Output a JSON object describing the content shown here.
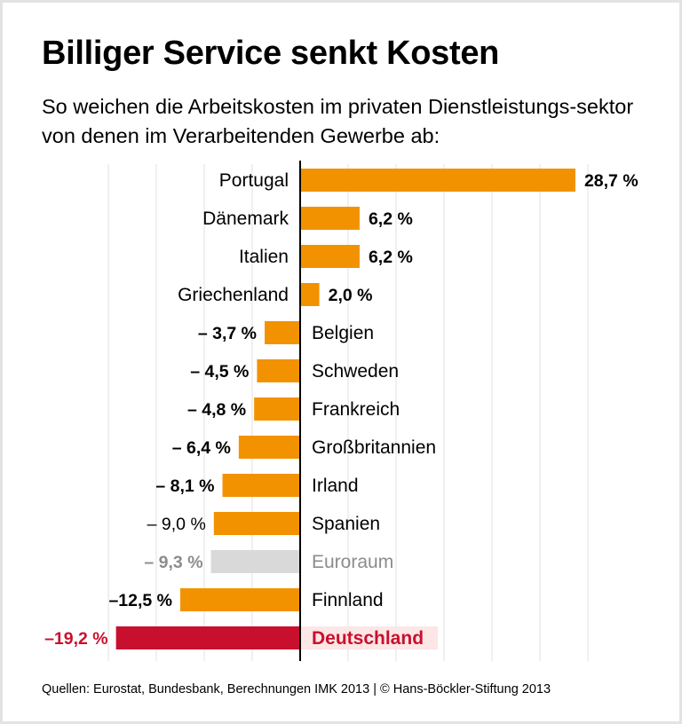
{
  "title": "Billiger Service senkt Kosten",
  "subtitle": "So weichen die Arbeitskosten im privaten Dienstleistungs-sektor von denen im Verarbeitenden Gewerbe ab:",
  "source": "Quellen: Eurostat, Bundesbank, Berechnungen IMK 2013 | © Hans-Böckler-Stiftung 2013",
  "colors": {
    "bar": "#f39200",
    "euroraum_bar": "#d9d9d9",
    "euroraum_text": "#8c8c8c",
    "highlight": "#c8102e",
    "highlight_bg": "#fde6e6",
    "text": "#000000",
    "grid": "#e6e6e6"
  },
  "chart_data": {
    "type": "bar",
    "orientation": "horizontal",
    "xlim": [
      -20,
      30
    ],
    "grid": true,
    "grid_step": 5,
    "unit": "%",
    "categories": [
      "Portugal",
      "Dänemark",
      "Italien",
      "Griechenland",
      "Belgien",
      "Schweden",
      "Frankreich",
      "Großbritannien",
      "Irland",
      "Spanien",
      "Euroraum",
      "Finnland",
      "Deutschland"
    ],
    "values": [
      28.7,
      6.2,
      6.2,
      2.0,
      -3.7,
      -4.5,
      -4.8,
      -6.4,
      -8.1,
      -9.0,
      -9.3,
      -12.5,
      -19.2
    ],
    "labels": [
      "28,7 %",
      "6,2 %",
      "6,2 %",
      "2,0 %",
      "– 3,7 %",
      "– 4,5 %",
      "– 4,8 %",
      "– 6,4 %",
      "– 8,1 %",
      "– 9,0 %",
      "– 9,3 %",
      "–12,5 %",
      "–19,2 %"
    ],
    "styles": [
      "normal",
      "normal",
      "normal",
      "normal",
      "normal",
      "normal",
      "normal",
      "normal",
      "normal",
      "light",
      "average",
      "normal",
      "highlight"
    ]
  }
}
